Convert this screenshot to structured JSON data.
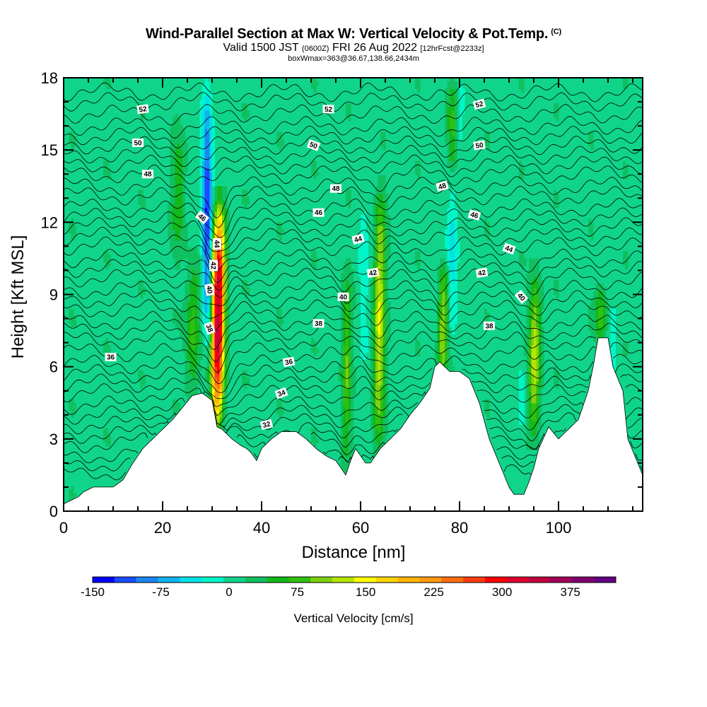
{
  "title": {
    "main": "Wind-Parallel Section at Max W: Vertical Velocity & Pot.Temp.",
    "copyright": "(C)",
    "valid_prefix": "Valid 1500 JST",
    "valid_utc": "(0600Z)",
    "valid_date": "FRI 26 Aug 2022",
    "forecast": "[12hrFcst@2233z]",
    "box_info": "boxWmax=363@36.67,138.66,2434m"
  },
  "chart_data": {
    "type": "heatmap",
    "title": "Wind-Parallel Section at Max W: Vertical Velocity & Pot.Temp.",
    "xlabel": "Distance [nm]",
    "ylabel": "Height [Kft MSL]",
    "xlim": [
      0,
      117
    ],
    "ylim": [
      0,
      18
    ],
    "x_ticks": [
      0,
      20,
      40,
      60,
      80,
      100
    ],
    "y_ticks": [
      0,
      3,
      6,
      9,
      12,
      15,
      18
    ],
    "background_w": 15,
    "colorbar": {
      "label": "Vertical Velocity [cm/s]",
      "min": -150,
      "max": 425,
      "step": 25,
      "tick_values": [
        -150,
        -75,
        0,
        75,
        150,
        225,
        300,
        375
      ],
      "colors": [
        "#0000ff",
        "#1a4cff",
        "#1c86f2",
        "#0fb4ee",
        "#00e1e6",
        "#00f5c8",
        "#10d48a",
        "#10c060",
        "#12b81c",
        "#30c010",
        "#80d010",
        "#b4e600",
        "#ffff00",
        "#ffd400",
        "#ffb400",
        "#ff9a10",
        "#ff6e10",
        "#ff3c10",
        "#ff0000",
        "#e00030",
        "#c00040",
        "#a0005a",
        "#800070",
        "#600080"
      ]
    },
    "terrain_kft": [
      [
        0,
        0.3
      ],
      [
        3,
        0.6
      ],
      [
        4,
        0.8
      ],
      [
        6,
        1.0
      ],
      [
        10,
        1.0
      ],
      [
        12,
        1.3
      ],
      [
        14,
        2.0
      ],
      [
        16,
        2.6
      ],
      [
        18,
        3.0
      ],
      [
        20,
        3.4
      ],
      [
        22,
        3.8
      ],
      [
        24,
        4.3
      ],
      [
        26,
        4.8
      ],
      [
        28,
        4.9
      ],
      [
        30,
        4.6
      ],
      [
        31,
        3.5
      ],
      [
        32,
        3.4
      ],
      [
        34,
        3.0
      ],
      [
        36,
        2.7
      ],
      [
        37,
        2.6
      ],
      [
        38,
        2.4
      ],
      [
        39,
        2.1
      ],
      [
        40,
        2.6
      ],
      [
        42,
        3.0
      ],
      [
        44,
        3.3
      ],
      [
        47,
        3.3
      ],
      [
        49,
        3.0
      ],
      [
        51,
        2.6
      ],
      [
        53,
        2.3
      ],
      [
        55,
        2.1
      ],
      [
        57,
        1.5
      ],
      [
        58,
        2.1
      ],
      [
        59,
        2.6
      ],
      [
        61,
        2.0
      ],
      [
        62,
        2.0
      ],
      [
        64,
        2.6
      ],
      [
        66,
        3.0
      ],
      [
        68,
        3.4
      ],
      [
        70,
        4.0
      ],
      [
        72,
        4.5
      ],
      [
        74,
        5.1
      ],
      [
        75,
        6.0
      ],
      [
        76,
        6.2
      ],
      [
        78,
        5.8
      ],
      [
        80,
        5.8
      ],
      [
        82,
        5.5
      ],
      [
        84,
        4.5
      ],
      [
        86,
        3.0
      ],
      [
        88,
        2.0
      ],
      [
        90,
        1.0
      ],
      [
        91,
        0.7
      ],
      [
        93,
        0.7
      ],
      [
        94,
        1.2
      ],
      [
        95,
        1.8
      ],
      [
        96,
        2.6
      ],
      [
        98,
        3.5
      ],
      [
        100,
        3.0
      ],
      [
        102,
        3.4
      ],
      [
        104,
        3.8
      ],
      [
        106,
        5.0
      ],
      [
        107,
        6.0
      ],
      [
        108,
        7.2
      ],
      [
        110,
        7.2
      ],
      [
        111,
        6.0
      ],
      [
        113,
        5.0
      ],
      [
        114,
        3.0
      ],
      [
        116,
        2.0
      ],
      [
        117,
        1.5
      ]
    ],
    "updrafts": [
      {
        "x": 31.0,
        "y_bottom": 3.5,
        "y_top": 13.0,
        "w_max": 363,
        "width_nm": 1.8
      },
      {
        "x": 26.0,
        "y_bottom": 4.5,
        "y_top": 11.0,
        "w_max": 70,
        "width_nm": 2.0
      },
      {
        "x": 63.5,
        "y_bottom": 2.5,
        "y_top": 13.5,
        "w_max": 130,
        "width_nm": 1.6
      },
      {
        "x": 57.0,
        "y_bottom": 2.0,
        "y_top": 10.0,
        "w_max": 80,
        "width_nm": 1.3
      },
      {
        "x": 76.5,
        "y_bottom": 5.0,
        "y_top": 10.5,
        "w_max": 110,
        "width_nm": 1.4
      },
      {
        "x": 95.0,
        "y_bottom": 3.0,
        "y_top": 10.0,
        "w_max": 130,
        "width_nm": 1.6
      },
      {
        "x": 108.5,
        "y_bottom": 7.0,
        "y_top": 9.5,
        "w_max": 70,
        "width_nm": 1.6
      },
      {
        "x": 78.5,
        "y_bottom": 14.0,
        "y_top": 18.0,
        "w_max": 60,
        "width_nm": 1.5
      },
      {
        "x": 23.0,
        "y_bottom": 10.5,
        "y_top": 16.0,
        "w_max": 45,
        "width_nm": 2.0
      }
    ],
    "downdrafts": [
      {
        "x": 29.0,
        "y_bottom": 6.5,
        "y_top": 18.0,
        "w_min": -150,
        "width_nm": 1.4
      },
      {
        "x": 60.5,
        "y_bottom": 6.0,
        "y_top": 13.5,
        "w_min": -30,
        "width_nm": 1.2
      },
      {
        "x": 78.5,
        "y_bottom": 7.0,
        "y_top": 14.0,
        "w_min": -60,
        "width_nm": 1.5
      },
      {
        "x": 80.0,
        "y_bottom": 15.0,
        "y_top": 18.0,
        "w_min": -40,
        "width_nm": 1.2
      },
      {
        "x": 92.5,
        "y_bottom": 2.0,
        "y_top": 7.0,
        "w_min": -30,
        "width_nm": 1.2
      },
      {
        "x": 111.0,
        "y_bottom": 5.0,
        "y_top": 9.0,
        "w_min": -20,
        "width_nm": 1.5
      }
    ],
    "isentropes": [
      {
        "level": 17.4
      },
      {
        "level": 17.0
      },
      {
        "level": 16.5,
        "label": "52"
      },
      {
        "level": 16.0
      },
      {
        "level": 15.6
      },
      {
        "level": 15.2,
        "label": "50"
      },
      {
        "level": 14.8
      },
      {
        "level": 14.4
      },
      {
        "level": 14.0,
        "label": "48"
      },
      {
        "level": 13.5
      },
      {
        "level": 13.1
      },
      {
        "level": 12.6
      },
      {
        "level": 12.2,
        "label": "46"
      },
      {
        "level": 11.8
      },
      {
        "level": 11.4,
        "label": "44"
      },
      {
        "level": 11.0
      },
      {
        "level": 10.5,
        "label": "42"
      },
      {
        "level": 10.1
      },
      {
        "level": 9.7
      },
      {
        "level": 9.2,
        "label": "40"
      },
      {
        "level": 8.8
      },
      {
        "level": 8.4
      },
      {
        "level": 7.9,
        "label": "38"
      },
      {
        "level": 7.5
      },
      {
        "level": 7.1
      },
      {
        "level": 6.6,
        "label": "36"
      },
      {
        "level": 6.1
      },
      {
        "level": 5.7
      },
      {
        "level": 5.3
      },
      {
        "level": 4.9,
        "label": "34"
      },
      {
        "level": 4.4
      },
      {
        "level": 4.0
      },
      {
        "level": 3.6,
        "label": "32"
      },
      {
        "level": 3.2
      },
      {
        "level": 2.8
      },
      {
        "level": 2.3
      },
      {
        "level": 1.9
      },
      {
        "level": 1.5
      }
    ],
    "contour_labels": [
      {
        "text": "52",
        "x": 16.0,
        "y": 16.7,
        "rot": -8
      },
      {
        "text": "52",
        "x": 53.5,
        "y": 16.7,
        "rot": 0
      },
      {
        "text": "52",
        "x": 84.0,
        "y": 16.9,
        "rot": -15
      },
      {
        "text": "50",
        "x": 15.0,
        "y": 15.3,
        "rot": 0
      },
      {
        "text": "50",
        "x": 50.5,
        "y": 15.2,
        "rot": 20
      },
      {
        "text": "50",
        "x": 84.0,
        "y": 15.2,
        "rot": -8
      },
      {
        "text": "48",
        "x": 17.0,
        "y": 14.0,
        "rot": 0
      },
      {
        "text": "48",
        "x": 55.0,
        "y": 13.4,
        "rot": 0
      },
      {
        "text": "48",
        "x": 76.5,
        "y": 13.5,
        "rot": -15
      },
      {
        "text": "46",
        "x": 28.0,
        "y": 12.2,
        "rot": 40
      },
      {
        "text": "46",
        "x": 51.5,
        "y": 12.4,
        "rot": 0
      },
      {
        "text": "46",
        "x": 83.0,
        "y": 12.3,
        "rot": 15
      },
      {
        "text": "44",
        "x": 31.0,
        "y": 11.1,
        "rot": 90
      },
      {
        "text": "44",
        "x": 59.5,
        "y": 11.3,
        "rot": -15
      },
      {
        "text": "44",
        "x": 90.0,
        "y": 10.9,
        "rot": 20
      },
      {
        "text": "42",
        "x": 30.3,
        "y": 10.2,
        "rot": 90
      },
      {
        "text": "42",
        "x": 62.5,
        "y": 9.9,
        "rot": -10
      },
      {
        "text": "42",
        "x": 84.5,
        "y": 9.9,
        "rot": -10
      },
      {
        "text": "40",
        "x": 29.5,
        "y": 9.2,
        "rot": 80
      },
      {
        "text": "40",
        "x": 56.5,
        "y": 8.9,
        "rot": 0
      },
      {
        "text": "40",
        "x": 92.5,
        "y": 8.9,
        "rot": 50
      },
      {
        "text": "38",
        "x": 29.5,
        "y": 7.6,
        "rot": 70
      },
      {
        "text": "38",
        "x": 51.5,
        "y": 7.8,
        "rot": 0
      },
      {
        "text": "38",
        "x": 86.0,
        "y": 7.7,
        "rot": 0
      },
      {
        "text": "36",
        "x": 9.5,
        "y": 6.4,
        "rot": 0
      },
      {
        "text": "36",
        "x": 45.5,
        "y": 6.2,
        "rot": -10
      },
      {
        "text": "34",
        "x": 44.0,
        "y": 4.9,
        "rot": -20
      },
      {
        "text": "32",
        "x": 41.0,
        "y": 3.6,
        "rot": -15
      }
    ]
  }
}
